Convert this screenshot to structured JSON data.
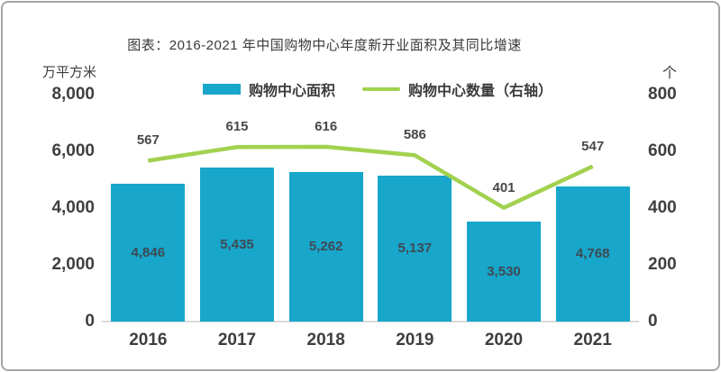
{
  "title": "图表：2016-2021 年中国购物中心年度新开业面积及其同比增速",
  "colors": {
    "bar": "#18A6CB",
    "line": "#A2D14F",
    "axis_line": "#DADADA",
    "frame_border": "#A6A6A6",
    "tick_text": "#3F3F3F",
    "bar_label_text": "#3E4A52"
  },
  "chart_data": {
    "type": "combo",
    "title": "图表：2016-2021 年中国购物中心年度新开业面积及其同比增速",
    "categories": [
      "2016",
      "2017",
      "2018",
      "2019",
      "2020",
      "2021"
    ],
    "series": [
      {
        "name": "购物中心面积",
        "type": "bar",
        "axis": "left",
        "color": "#18A6CB",
        "values": [
          4846,
          5435,
          5262,
          5137,
          3530,
          4768
        ],
        "labels": [
          "4,846",
          "5,435",
          "5,262",
          "5,137",
          "3,530",
          "4,768"
        ]
      },
      {
        "name": "购物中心数量（右轴）",
        "type": "line",
        "axis": "right",
        "color": "#A2D14F",
        "values": [
          567,
          615,
          616,
          586,
          401,
          547
        ],
        "labels": [
          "567",
          "615",
          "616",
          "586",
          "401",
          "547"
        ]
      }
    ],
    "left_axis": {
      "unit": "万平方米",
      "min": 0,
      "max": 8000,
      "ticks": [
        {
          "value": 8000,
          "label": "8,000"
        },
        {
          "value": 6000,
          "label": "6,000"
        },
        {
          "value": 4000,
          "label": "4,000"
        },
        {
          "value": 2000,
          "label": "2,000"
        },
        {
          "value": 0,
          "label": "0"
        }
      ]
    },
    "right_axis": {
      "unit": "个",
      "min": 0,
      "max": 800,
      "ticks": [
        {
          "value": 800,
          "label": "800"
        },
        {
          "value": 600,
          "label": "600"
        },
        {
          "value": 400,
          "label": "400"
        },
        {
          "value": 200,
          "label": "200"
        },
        {
          "value": 0,
          "label": "0"
        }
      ]
    },
    "legend_position": "top",
    "grid": false
  }
}
